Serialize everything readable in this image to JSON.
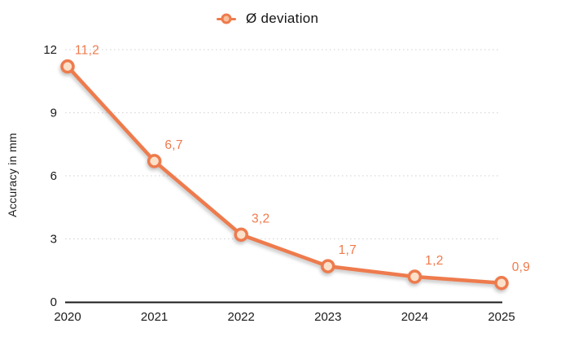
{
  "chart_data": {
    "type": "line",
    "title": "",
    "legend": {
      "label": "Ø deviation",
      "position": "top-center"
    },
    "categories": [
      "2020",
      "2021",
      "2022",
      "2023",
      "2024",
      "2025"
    ],
    "series": [
      {
        "name": "Ø deviation",
        "values": [
          11.2,
          6.7,
          3.2,
          1.7,
          1.2,
          0.9
        ],
        "point_labels": [
          "11,2",
          "6,7",
          "3,2",
          "1,7",
          "1,2",
          "0,9"
        ]
      }
    ],
    "xlabel": "",
    "ylabel": "Accuracy in mm",
    "ylim": [
      0,
      12
    ],
    "yticks": [
      0,
      3,
      6,
      9,
      12
    ],
    "grid": {
      "horizontal": true,
      "style": "dotted"
    },
    "colors": {
      "line": "#ee7b4d",
      "marker_fill": "#fbe0ca",
      "data_label": "#ef7a4c",
      "grid_line": "#d9d9d9",
      "axis_line": "#1a1a1a",
      "tick_text": "#1a1a1a",
      "legend_text": "#141414"
    }
  }
}
